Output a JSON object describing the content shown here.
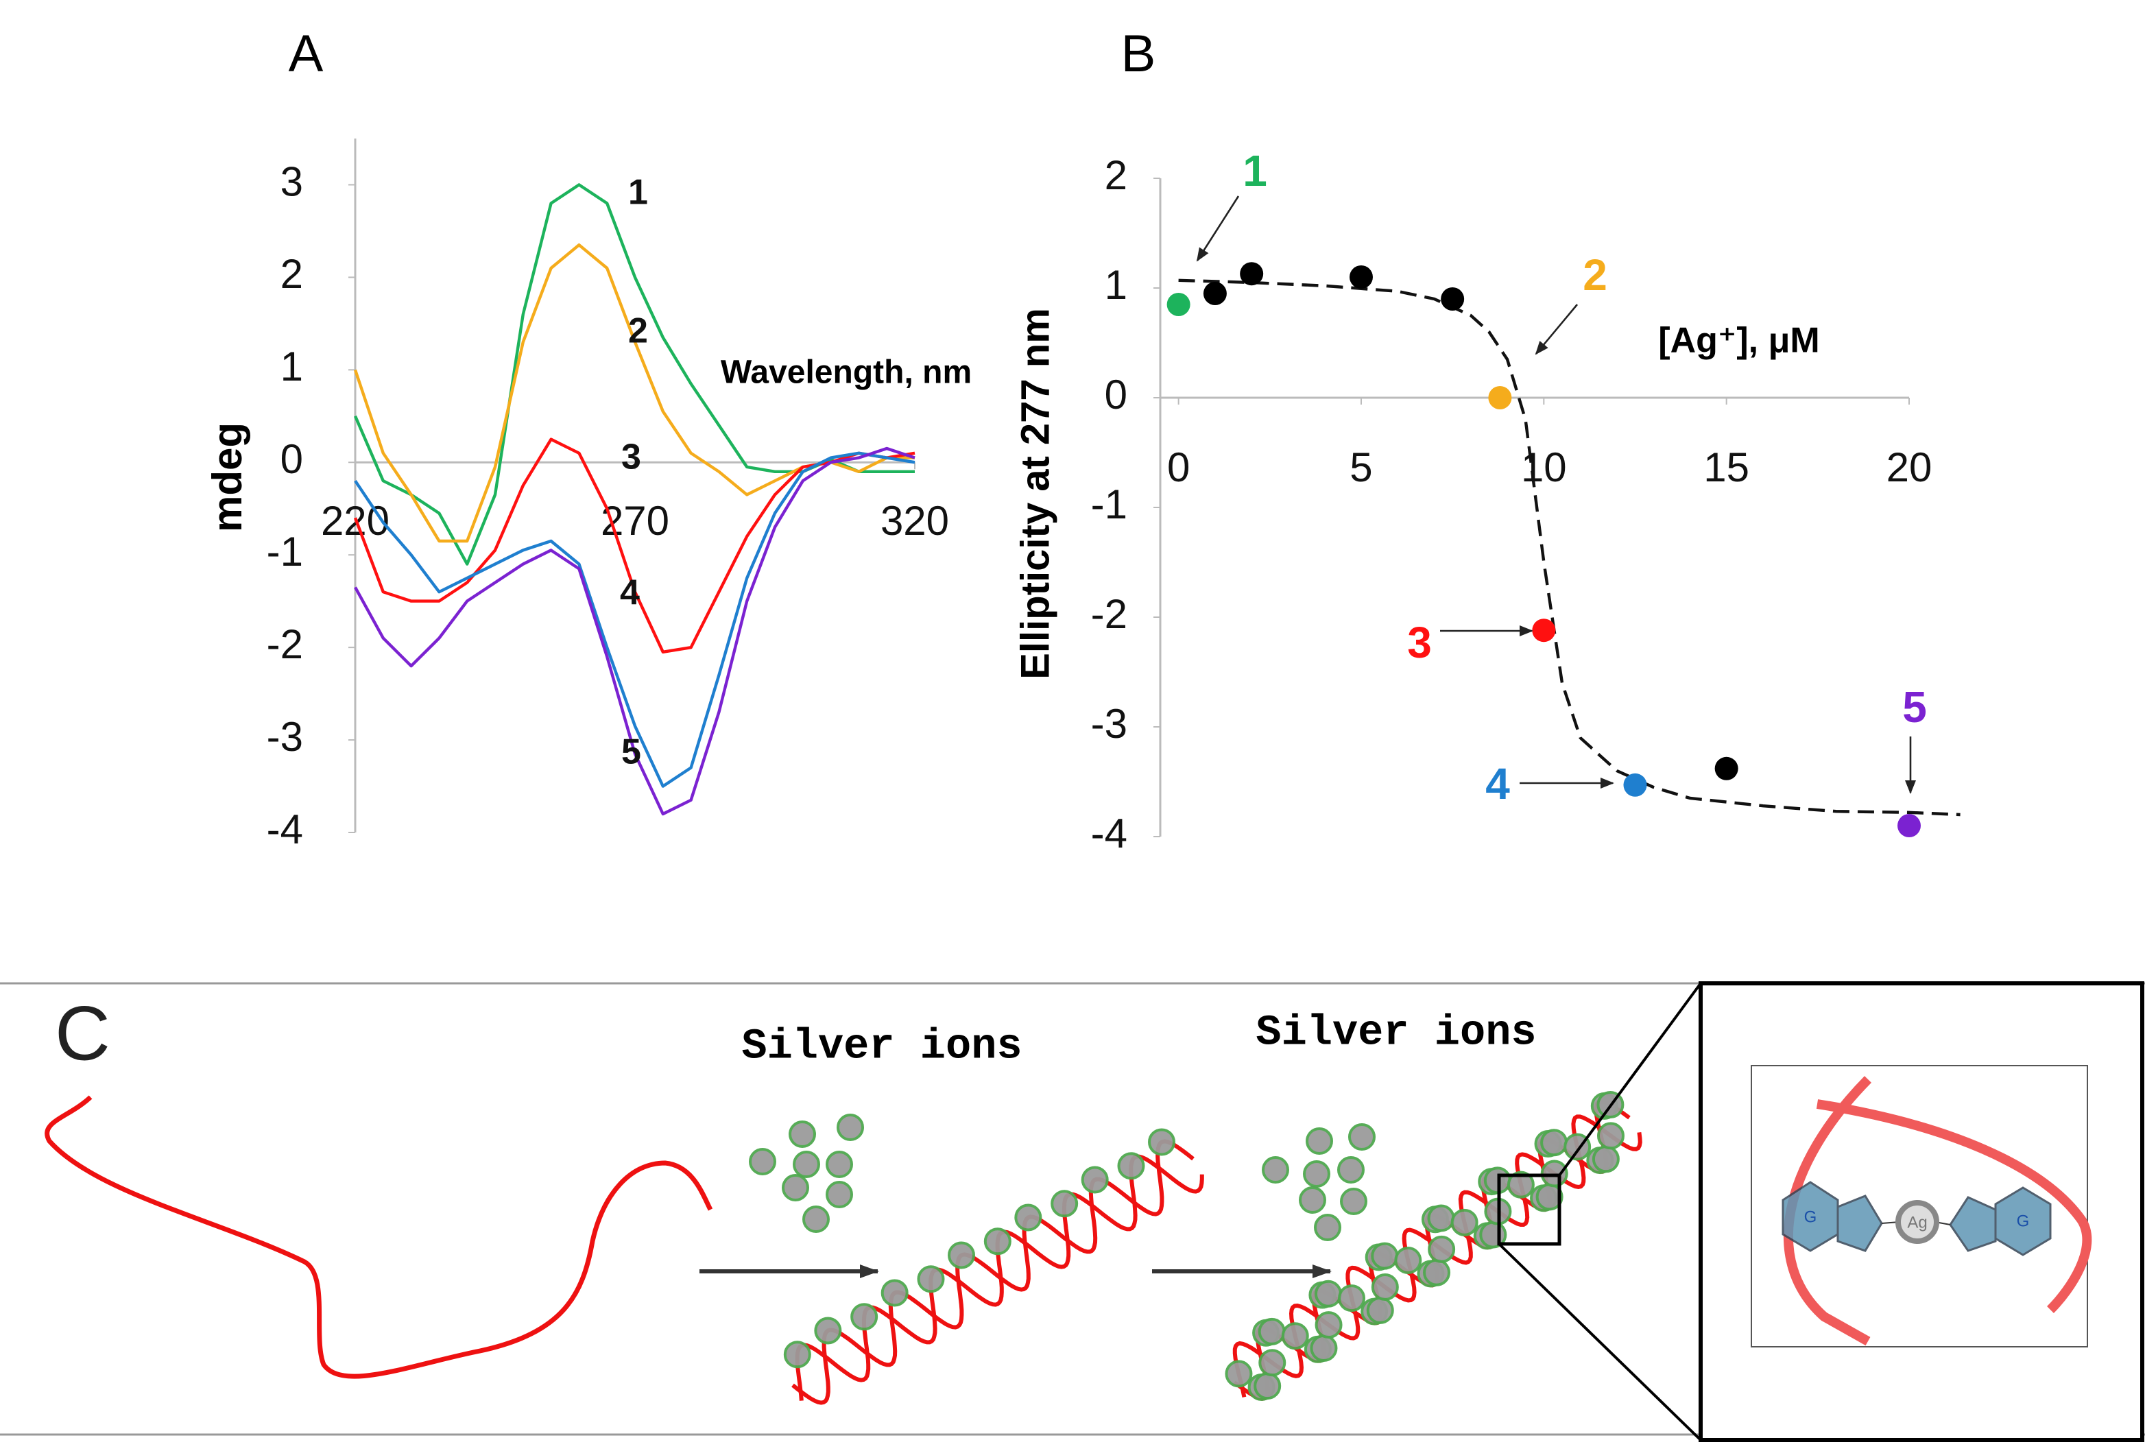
{
  "chart_data": [
    {
      "type": "line",
      "title": "A",
      "x_label": "Wavelength, nm",
      "y_label": "mdeg",
      "x": [
        220,
        225,
        230,
        235,
        240,
        245,
        250,
        255,
        260,
        265,
        270,
        275,
        280,
        285,
        290,
        295,
        300,
        305,
        310,
        315,
        320
      ],
      "xlim": [
        220,
        320
      ],
      "xticks": [
        220,
        270,
        320
      ],
      "ylim": [
        -4,
        3.5
      ],
      "yticks": [
        -4,
        -3,
        -2,
        -1,
        0,
        1,
        2,
        3
      ],
      "series": [
        {
          "name": "1",
          "color": "#1db35c",
          "values": [
            0.5,
            -0.2,
            -0.35,
            -0.55,
            -1.1,
            -0.35,
            1.6,
            2.8,
            3.0,
            2.8,
            2.0,
            1.35,
            0.85,
            0.4,
            -0.05,
            -0.1,
            -0.1,
            0.03,
            -0.1,
            -0.1,
            -0.1
          ]
        },
        {
          "name": "2",
          "color": "#f5ac1c",
          "values": [
            1.0,
            0.1,
            -0.35,
            -0.85,
            -0.85,
            -0.05,
            1.3,
            2.1,
            2.35,
            2.1,
            1.3,
            0.55,
            0.1,
            -0.1,
            -0.35,
            -0.2,
            -0.05,
            0.0,
            -0.1,
            0.05,
            0.05
          ]
        },
        {
          "name": "3",
          "color": "#ff1010",
          "values": [
            -0.6,
            -1.4,
            -1.5,
            -1.5,
            -1.3,
            -0.95,
            -0.25,
            0.25,
            0.1,
            -0.5,
            -1.4,
            -2.05,
            -2.0,
            -1.4,
            -0.8,
            -0.35,
            -0.05,
            0.0,
            0.1,
            0.05,
            0.1
          ]
        },
        {
          "name": "4",
          "color": "#1f7fcf",
          "values": [
            -0.2,
            -0.65,
            -1.0,
            -1.4,
            -1.25,
            -1.1,
            -0.95,
            -0.85,
            -1.1,
            -2.0,
            -2.85,
            -3.5,
            -3.3,
            -2.3,
            -1.25,
            -0.55,
            -0.1,
            0.05,
            0.1,
            0.05,
            0.0
          ]
        },
        {
          "name": "5",
          "color": "#7b22d1",
          "values": [
            -1.35,
            -1.9,
            -2.2,
            -1.9,
            -1.5,
            -1.3,
            -1.1,
            -0.95,
            -1.15,
            -2.1,
            -3.15,
            -3.8,
            -3.65,
            -2.7,
            -1.5,
            -0.7,
            -0.2,
            0.0,
            0.05,
            0.15,
            0.05
          ]
        }
      ]
    },
    {
      "type": "scatter",
      "title": "B",
      "x_label": "[Ag⁺], μM",
      "y_label": "Ellipticity at 277 nm",
      "x": [
        0,
        1,
        2,
        5,
        7.5,
        8.8,
        10,
        12.5,
        15,
        20
      ],
      "values": [
        0.85,
        0.95,
        1.13,
        1.1,
        0.9,
        0,
        -2.12,
        -3.53,
        -3.38,
        -3.9
      ],
      "colors": [
        "#1db35c",
        "#000000",
        "#000000",
        "#000000",
        "#000000",
        "#f5ac1c",
        "#ff1010",
        "#1f7fcf",
        "#000000",
        "#7b22d1"
      ],
      "xlim": [
        -0.5,
        20
      ],
      "xticks": [
        0,
        5,
        10,
        15,
        20
      ],
      "ylim": [
        -4,
        2
      ],
      "yticks": [
        -4,
        -3,
        -2,
        -1,
        0,
        1,
        2
      ],
      "fit": {
        "x": [
          0,
          2,
          4,
          6,
          7,
          8,
          8.5,
          9,
          9.5,
          10,
          10.5,
          11,
          12,
          13,
          14,
          16,
          18,
          20,
          21.4
        ],
        "values": [
          1.07,
          1.05,
          1.02,
          0.97,
          0.9,
          0.75,
          0.6,
          0.35,
          -0.2,
          -1.5,
          -2.6,
          -3.1,
          -3.4,
          -3.55,
          -3.65,
          -3.72,
          -3.77,
          -3.78,
          -3.8
        ]
      },
      "annotations": [
        {
          "text": "1",
          "color": "#1db35c"
        },
        {
          "text": "2",
          "color": "#f5ac1c"
        },
        {
          "text": "3",
          "color": "#ff1010"
        },
        {
          "text": "4",
          "color": "#1f7fcf"
        },
        {
          "text": "5",
          "color": "#7b22d1"
        }
      ]
    }
  ],
  "diagram": {
    "label": "C",
    "steps": [
      "Silver ions",
      "Silver ions"
    ],
    "inset": {
      "bases": [
        "G",
        "G"
      ],
      "ion": "Ag"
    }
  }
}
